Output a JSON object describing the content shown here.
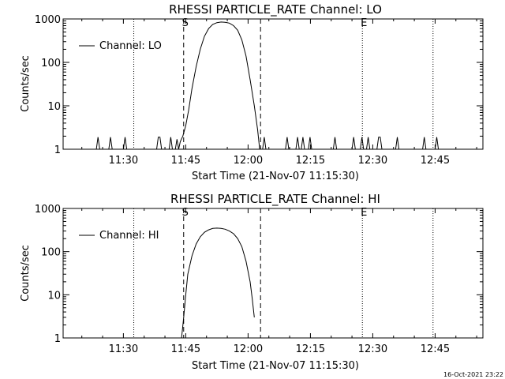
{
  "footer": {
    "timestamp": "16-Oct-2021 23:22"
  },
  "chart_data": [
    {
      "type": "line",
      "title": "RHESSI PARTICLE_RATE Channel: LO",
      "xlabel": "Start Time (21-Nov-07 11:15:30)",
      "ylabel": "Counts/sec",
      "x_unit": "minutes after 11:15:30",
      "xlim": [
        0,
        101
      ],
      "ylim": [
        1,
        1000
      ],
      "yscale": "log",
      "x_ticks": [
        {
          "x": 14.5,
          "label": "11:30"
        },
        {
          "x": 29.5,
          "label": "11:45"
        },
        {
          "x": 44.5,
          "label": "12:00"
        },
        {
          "x": 59.5,
          "label": "12:15"
        },
        {
          "x": 74.5,
          "label": "12:30"
        },
        {
          "x": 89.5,
          "label": "12:45"
        }
      ],
      "y_ticks": [
        {
          "y": 1,
          "label": "1"
        },
        {
          "y": 10,
          "label": "10"
        },
        {
          "y": 100,
          "label": "100"
        },
        {
          "y": 1000,
          "label": "1000"
        }
      ],
      "legend": {
        "position": "top-left",
        "entries": [
          "Channel: LO"
        ]
      },
      "markers": [
        {
          "x": 17,
          "style": "dotted",
          "label": ""
        },
        {
          "x": 29,
          "style": "dashed",
          "label": "S"
        },
        {
          "x": 47.5,
          "style": "dashed",
          "label": ""
        },
        {
          "x": 72,
          "style": "dotted",
          "label": "E"
        },
        {
          "x": 89,
          "style": "dotted",
          "label": ""
        }
      ],
      "series": [
        {
          "name": "Channel: LO",
          "points": [
            [
              0,
              1
            ],
            [
              8,
              1
            ],
            [
              8.4,
              1.9
            ],
            [
              8.8,
              1
            ],
            [
              11,
              1
            ],
            [
              11.4,
              1.9
            ],
            [
              11.8,
              1
            ],
            [
              14.5,
              1
            ],
            [
              14.9,
              1.9
            ],
            [
              15.3,
              1
            ],
            [
              22.5,
              1
            ],
            [
              22.9,
              1.9
            ],
            [
              23.3,
              1.9
            ],
            [
              23.7,
              1
            ],
            [
              25.5,
              1
            ],
            [
              25.9,
              1.9
            ],
            [
              26.3,
              1
            ],
            [
              27,
              1
            ],
            [
              27.4,
              1.7
            ],
            [
              27.8,
              1
            ],
            [
              28.2,
              1.5
            ],
            [
              28.8,
              2
            ],
            [
              29.5,
              3.5
            ],
            [
              30.2,
              8
            ],
            [
              31,
              25
            ],
            [
              32,
              80
            ],
            [
              33,
              200
            ],
            [
              34,
              400
            ],
            [
              35,
              600
            ],
            [
              36,
              750
            ],
            [
              37,
              820
            ],
            [
              38,
              850
            ],
            [
              39,
              840
            ],
            [
              40,
              800
            ],
            [
              41,
              700
            ],
            [
              42,
              550
            ],
            [
              43,
              330
            ],
            [
              44,
              140
            ],
            [
              45,
              40
            ],
            [
              46,
              10
            ],
            [
              46.8,
              2.8
            ],
            [
              47.3,
              1
            ],
            [
              48,
              1
            ],
            [
              48.4,
              1.9
            ],
            [
              48.8,
              1
            ],
            [
              53.5,
              1
            ],
            [
              53.9,
              1.9
            ],
            [
              54.3,
              1
            ],
            [
              56,
              1
            ],
            [
              56.4,
              1.9
            ],
            [
              56.8,
              1
            ],
            [
              57.3,
              1
            ],
            [
              57.7,
              1.9
            ],
            [
              58.1,
              1
            ],
            [
              59,
              1
            ],
            [
              59.4,
              1.9
            ],
            [
              59.8,
              1
            ],
            [
              65,
              1
            ],
            [
              65.4,
              1.9
            ],
            [
              65.8,
              1
            ],
            [
              69.5,
              1
            ],
            [
              69.9,
              1.9
            ],
            [
              70.3,
              1
            ],
            [
              71.5,
              1
            ],
            [
              71.9,
              1.9
            ],
            [
              72.3,
              1
            ],
            [
              73,
              1
            ],
            [
              73.4,
              1.9
            ],
            [
              73.8,
              1
            ],
            [
              75.5,
              1
            ],
            [
              75.9,
              1.9
            ],
            [
              76.3,
              1.9
            ],
            [
              76.7,
              1
            ],
            [
              80,
              1
            ],
            [
              80.4,
              1.9
            ],
            [
              80.8,
              1
            ],
            [
              86.5,
              1
            ],
            [
              86.9,
              1.9
            ],
            [
              87.3,
              1
            ],
            [
              89.5,
              1
            ],
            [
              89.9,
              1.9
            ],
            [
              90.3,
              1
            ],
            [
              92,
              1
            ]
          ]
        }
      ]
    },
    {
      "type": "line",
      "title": "RHESSI PARTICLE_RATE Channel: HI",
      "xlabel": "Start Time (21-Nov-07 11:15:30)",
      "ylabel": "Counts/sec",
      "x_unit": "minutes after 11:15:30",
      "xlim": [
        0,
        101
      ],
      "ylim": [
        1,
        1000
      ],
      "yscale": "log",
      "x_ticks": [
        {
          "x": 14.5,
          "label": "11:30"
        },
        {
          "x": 29.5,
          "label": "11:45"
        },
        {
          "x": 44.5,
          "label": "12:00"
        },
        {
          "x": 59.5,
          "label": "12:15"
        },
        {
          "x": 74.5,
          "label": "12:30"
        },
        {
          "x": 89.5,
          "label": "12:45"
        }
      ],
      "y_ticks": [
        {
          "y": 1,
          "label": "1"
        },
        {
          "y": 10,
          "label": "10"
        },
        {
          "y": 100,
          "label": "100"
        },
        {
          "y": 1000,
          "label": "1000"
        }
      ],
      "legend": {
        "position": "top-left",
        "entries": [
          "Channel: HI"
        ]
      },
      "markers": [
        {
          "x": 17,
          "style": "dotted",
          "label": ""
        },
        {
          "x": 29,
          "style": "dashed",
          "label": "S"
        },
        {
          "x": 47.5,
          "style": "dashed",
          "label": ""
        },
        {
          "x": 72,
          "style": "dotted",
          "label": "E"
        },
        {
          "x": 89,
          "style": "dotted",
          "label": ""
        }
      ],
      "series": [
        {
          "name": "Channel: HI",
          "points": [
            [
              28.5,
              1
            ],
            [
              29,
              3
            ],
            [
              29.5,
              10
            ],
            [
              30,
              30
            ],
            [
              31,
              80
            ],
            [
              32,
              150
            ],
            [
              33,
              220
            ],
            [
              34,
              280
            ],
            [
              35,
              320
            ],
            [
              36,
              345
            ],
            [
              37,
              350
            ],
            [
              38,
              345
            ],
            [
              39,
              330
            ],
            [
              40,
              300
            ],
            [
              41,
              260
            ],
            [
              42,
              200
            ],
            [
              43,
              130
            ],
            [
              44,
              60
            ],
            [
              45,
              20
            ],
            [
              45.5,
              8
            ],
            [
              46,
              3
            ]
          ]
        }
      ]
    }
  ]
}
